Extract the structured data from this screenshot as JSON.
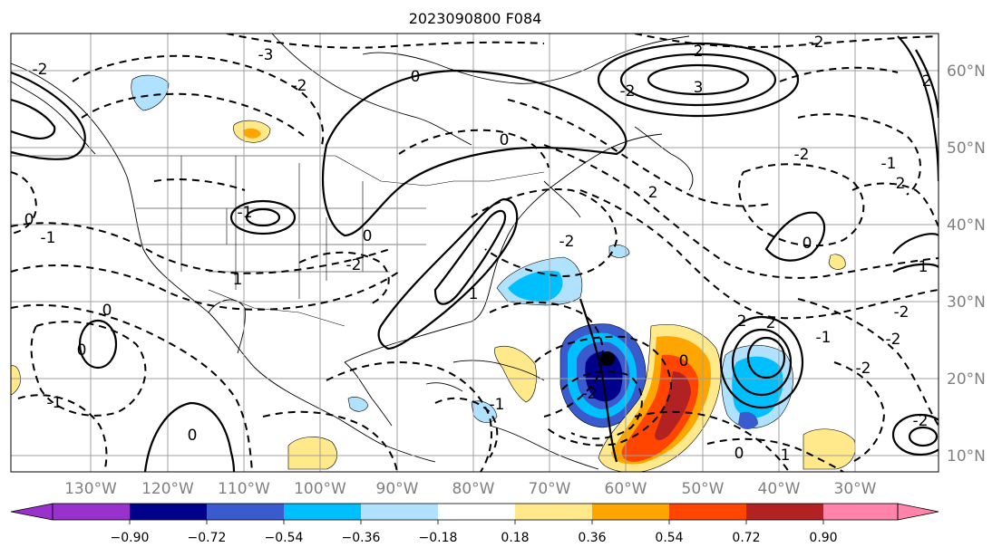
{
  "title": "2023090800 F084",
  "longitude_labels": [
    "130°W",
    "120°W",
    "110°W",
    "100°W",
    "90°W",
    "80°W",
    "70°W",
    "60°W",
    "50°W",
    "40°W",
    "30°W"
  ],
  "latitude_labels": [
    "60°N",
    "50°N",
    "40°N",
    "30°N",
    "20°N",
    "10°N"
  ],
  "colorbar": {
    "tick_labels": [
      "−0.90",
      "−0.72",
      "−0.54",
      "−0.36",
      "−0.18",
      "0.18",
      "0.36",
      "0.54",
      "0.72",
      "0.90"
    ],
    "colors": [
      "#9932cc",
      "#00008b",
      "#3a5bcd",
      "#00bfff",
      "#b0e2ff",
      "#ffffff",
      "#ffe98a",
      "#ffa500",
      "#ff4500",
      "#b22222",
      "#ff83aa"
    ]
  },
  "contour_labels": [
    "-3",
    "-2",
    "0",
    "-2",
    "3",
    "2",
    "-2",
    "-2",
    "2",
    "-2",
    "0",
    "-1",
    "1",
    "0",
    "-2",
    "2",
    "-1",
    "-2",
    "0",
    "1",
    "-2",
    "0",
    "1",
    "-2",
    "-1",
    "0",
    "2",
    "-2",
    "0",
    "-1",
    "-2",
    "-2",
    "1",
    "-2",
    "0",
    "2",
    "-1",
    "0",
    "0",
    "-1"
  ],
  "colors": {
    "land_outline": "#000000",
    "grid": "#a0a0a0",
    "axis_label": "#808080"
  }
}
